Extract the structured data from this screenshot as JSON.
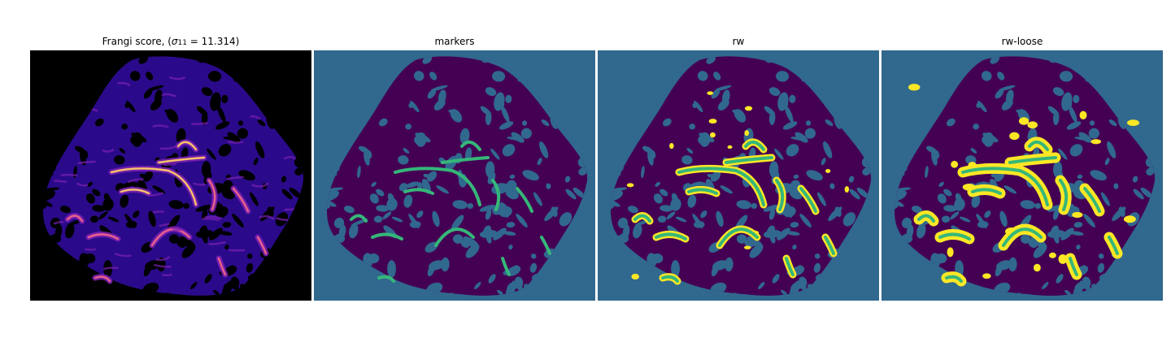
{
  "panels": [
    {
      "id": "frangi",
      "title_prefix": "Frangi score, (",
      "title_sigma": "σ",
      "title_sub": "11",
      "title_value": " = 11.314)",
      "colors": {
        "background": "#000000",
        "tissue": "#2a0a8a",
        "mid": "#7a1fb0",
        "high": "#e8608a",
        "peak": "#f5c36a"
      }
    },
    {
      "id": "markers",
      "title": "markers",
      "colors": {
        "background": "#31688e",
        "tissue": "#440154",
        "marker": "#35b779"
      }
    },
    {
      "id": "rw",
      "title": "rw",
      "colors": {
        "background": "#31688e",
        "tissue": "#440154",
        "marker": "#35b779",
        "segment": "#fde725"
      }
    },
    {
      "id": "rw-loose",
      "title": "rw-loose",
      "colors": {
        "background": "#31688e",
        "tissue": "#440154",
        "marker": "#35b779",
        "segment": "#fde725"
      }
    }
  ]
}
